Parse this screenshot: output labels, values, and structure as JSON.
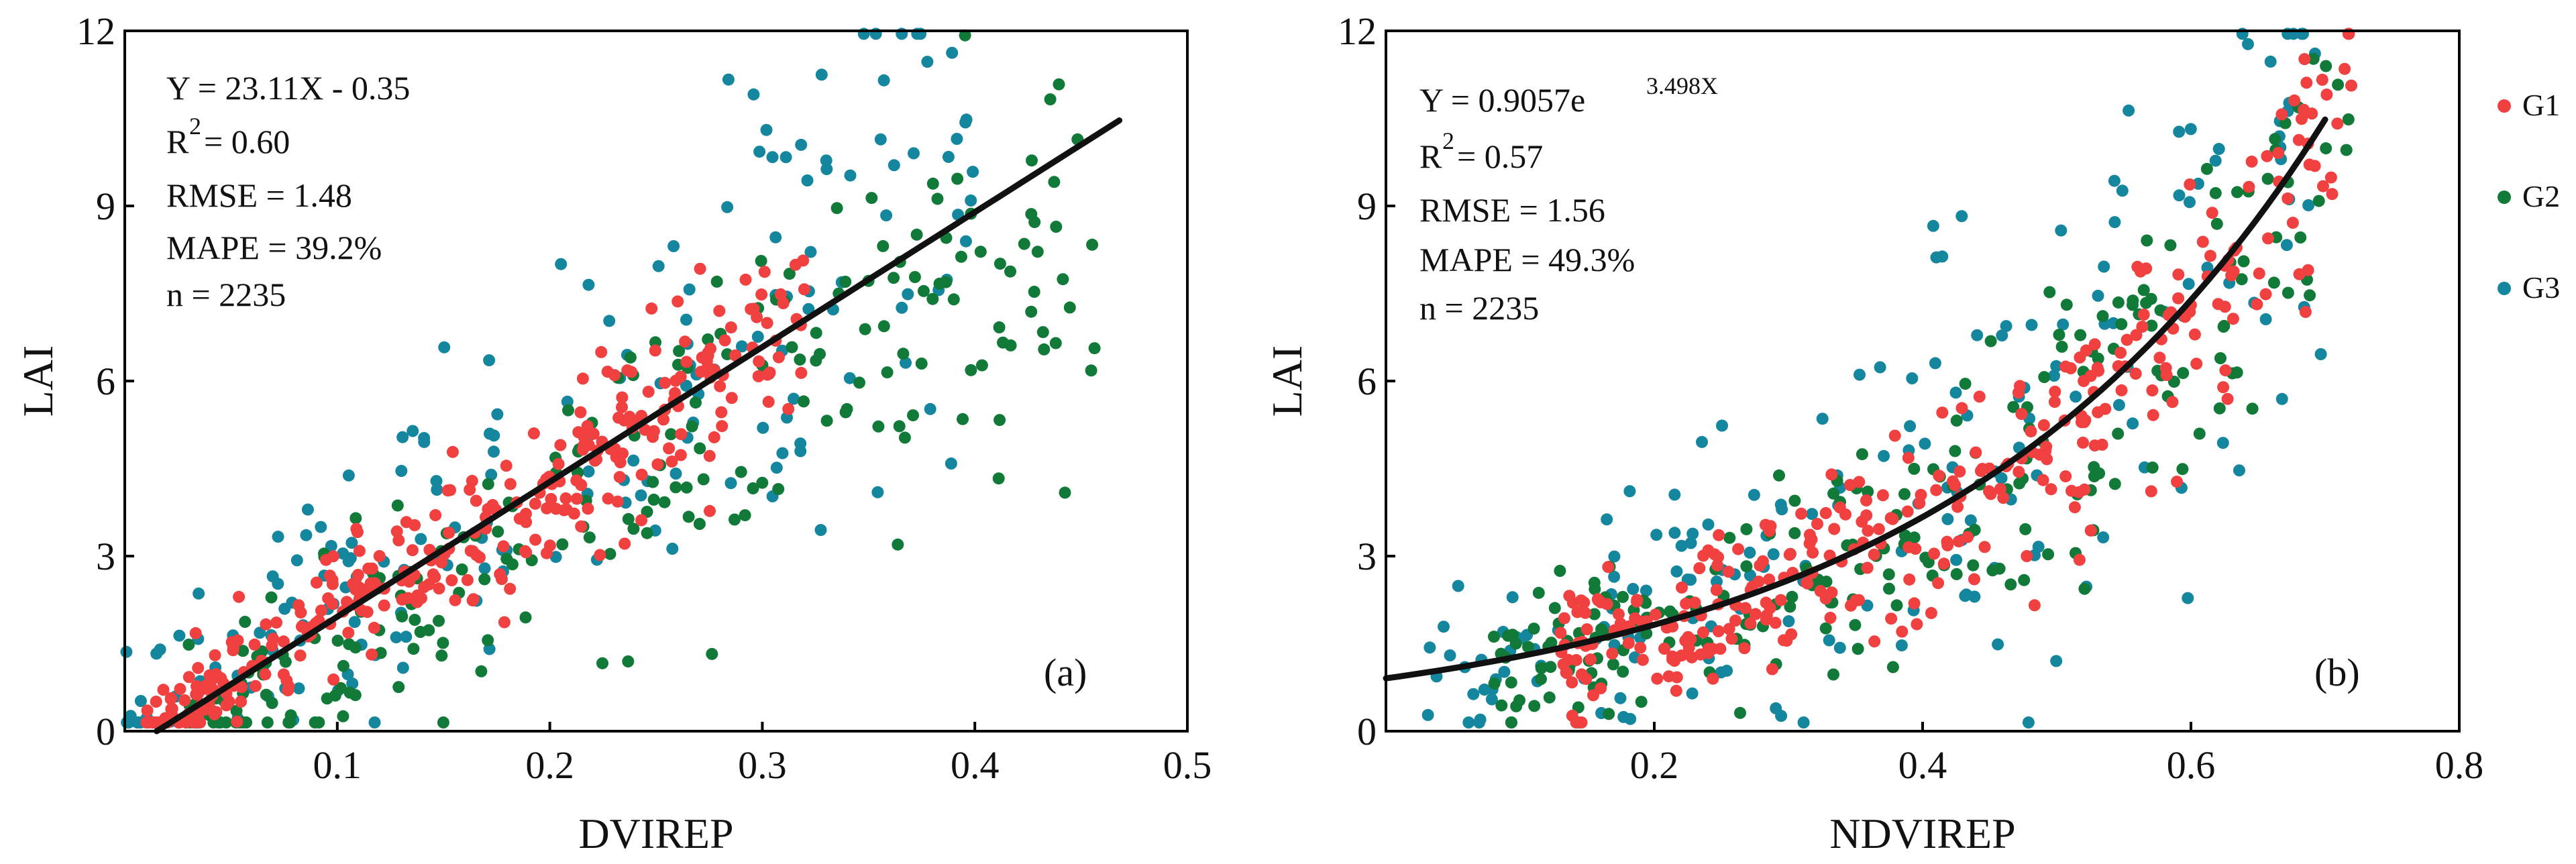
{
  "colors": {
    "G1": "#f04040",
    "G2": "#117a38",
    "G3": "#14869e"
  },
  "legend": [
    {
      "label": "G1",
      "color": "#f04040"
    },
    {
      "label": "G2",
      "color": "#117a38"
    },
    {
      "label": "G3",
      "color": "#14869e"
    }
  ],
  "chart_data": [
    {
      "type": "scatter",
      "panel_label": "(a)",
      "xlabel": "DVIREP",
      "ylabel": "LAI",
      "xlim": [
        0,
        0.5
      ],
      "ylim": [
        0,
        12
      ],
      "xticks": [
        "0.1",
        "0.2",
        "0.3",
        "0.4",
        "0.5"
      ],
      "yticks": [
        "0",
        "3",
        "6",
        "9",
        "12"
      ],
      "equation": "Y = 23.11X - 0.35",
      "r2_prefix": "R",
      "r2_sup": "2",
      "r2_value": "= 0.60",
      "rmse": "RMSE = 1.48",
      "mape": "MAPE = 39.2%",
      "n": "n = 2235",
      "fit": {
        "kind": "linear",
        "a": 23.11,
        "b": -0.35,
        "x_range": [
          0.015,
          0.468
        ]
      },
      "series": [
        {
          "name": "G1",
          "x_range": [
            0.01,
            0.32
          ],
          "center_slope": 23.11,
          "center_offset": -0.35,
          "spread": 1.0
        },
        {
          "name": "G2",
          "x_range": [
            0.03,
            0.47
          ],
          "center_slope": 21.0,
          "center_offset": -0.8,
          "spread": 1.5
        },
        {
          "name": "G3",
          "x_range": [
            0.0,
            0.4
          ],
          "center_slope": 26.0,
          "center_offset": -0.3,
          "spread": 2.2
        }
      ]
    },
    {
      "type": "scatter",
      "panel_label": "(b)",
      "xlabel": "NDVIREP",
      "ylabel": "LAI",
      "xlim": [
        0,
        0.8
      ],
      "ylim": [
        0,
        12
      ],
      "xticks": [
        "0.2",
        "0.4",
        "0.6",
        "0.8"
      ],
      "yticks": [
        "0",
        "3",
        "6",
        "9",
        "12"
      ],
      "equation": "Y = 0.9057e",
      "equation_sup": "3.498X",
      "r2_prefix": "R",
      "r2_sup": "2",
      "r2_value": "= 0.57",
      "rmse": "RMSE = 1.56",
      "mape": "MAPE = 49.3%",
      "n": "n = 2235",
      "fit": {
        "kind": "exponential",
        "a": 0.9057,
        "b": 3.498,
        "x_range": [
          0.0,
          0.7
        ]
      },
      "series": [
        {
          "name": "G1",
          "x_range": [
            0.13,
            0.72
          ],
          "center_a": 0.88,
          "center_b": 3.5,
          "spread": 1.0
        },
        {
          "name": "G2",
          "x_range": [
            0.08,
            0.72
          ],
          "center_a": 0.8,
          "center_b": 3.55,
          "spread": 1.4
        },
        {
          "name": "G3",
          "x_range": [
            0.03,
            0.7
          ],
          "center_a": 0.95,
          "center_b": 3.6,
          "spread": 2.2
        }
      ]
    }
  ]
}
